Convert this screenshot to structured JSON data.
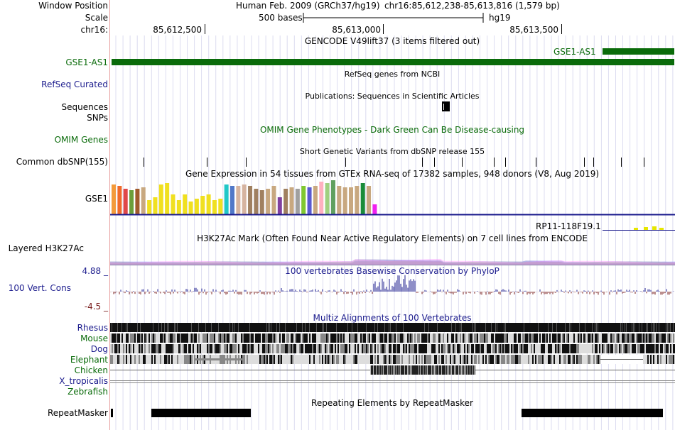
{
  "header": {
    "window_position_label": "Window Position",
    "assembly_text": "Human Feb. 2009 (GRCh37/hg19)",
    "position_text": "chr16:85,612,238-85,613,816 (1,579 bp)",
    "scale_label": "Scale",
    "scale_text": "500 bases",
    "scale_db": "hg19",
    "chrom_label": "chr16:",
    "ticks": [
      "85,612,500",
      "85,613,000",
      "85,613,500"
    ]
  },
  "tracks": {
    "gencode": {
      "title": "GENCODE V49lift37 (3 items filtered out)",
      "label": "GSE1-AS1",
      "item": "GSE1-AS1",
      "color": "#0a6b0a"
    },
    "refseq": {
      "title": "RefSeq genes from NCBI",
      "label": "RefSeq Curated",
      "color": "#1a1a8c"
    },
    "publications": {
      "title": "Publications: Sequences in Scientific Articles",
      "label_a": "Sequences",
      "label_b": "SNPs"
    },
    "omim": {
      "title": "OMIM Gene Phenotypes - Dark Green Can Be Disease-causing",
      "label": "OMIM Genes",
      "color": "#0a6b0a"
    },
    "dbsnp": {
      "title": "Short Genetic Variants from dbSNP release 155",
      "label": "Common dbSNP(155)"
    },
    "gtex": {
      "title": "Gene Expression in 54 tissues from GTEx RNA-seq of 17382 samples, 948 donors (V8, Aug 2019)",
      "label": "GSE1",
      "item2": "RP11-118F19.1"
    },
    "h3k27ac": {
      "title": "H3K27Ac Mark (Often Found Near Active Regulatory Elements) on 7 cell lines from ENCODE",
      "label": "Layered H3K27Ac"
    },
    "phylop": {
      "title": "100 vertebrates Basewise Conservation by PhyloP",
      "label": "100 Vert. Cons",
      "max": "4.88 _",
      "min": "-4.5 _",
      "color": "#1f1f8f"
    },
    "multiz": {
      "title": "Multiz Alignments of 100 Vertebrates",
      "color": "#1a1a8c",
      "species": [
        {
          "name": "Rhesus",
          "color": "#1a1a8c"
        },
        {
          "name": "Mouse",
          "color": "#0a6b0a"
        },
        {
          "name": "Dog",
          "color": "#1a1a8c"
        },
        {
          "name": "Elephant",
          "color": "#0a6b0a"
        },
        {
          "name": "Chicken",
          "color": "#0a6b0a"
        },
        {
          "name": "X_tropicalis",
          "color": "#1a1a8c"
        },
        {
          "name": "Zebrafish",
          "color": "#0a6b0a"
        }
      ]
    },
    "repeatmasker": {
      "title": "Repeating Elements by RepeatMasker",
      "label": "RepeatMasker"
    }
  }
}
